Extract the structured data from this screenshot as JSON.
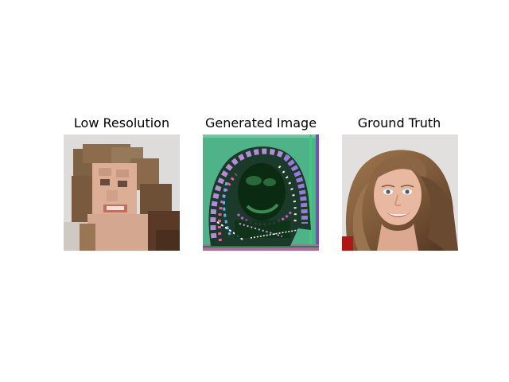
{
  "figure": {
    "panels": [
      {
        "title": "Low Resolution",
        "content": "pixelated low-resolution face photo of a woman with long wavy blonde-brown hair"
      },
      {
        "title": "Generated Image",
        "content": "noisy artifact-filled generated image with green, purple and black swirling patterns"
      },
      {
        "title": "Ground Truth",
        "content": "high-resolution face photo of a smiling woman with long wavy blonde-brown hair"
      }
    ]
  },
  "colors": {
    "background": "#ffffff",
    "title_text": "#000000",
    "photo_bg": "#dcdcdc",
    "hair": "#8a6a48",
    "skin": "#e8b8a0",
    "generated_bg": "#4fb38a",
    "generated_dark": "#0a2a12",
    "generated_purple": "#8a5ad0"
  }
}
